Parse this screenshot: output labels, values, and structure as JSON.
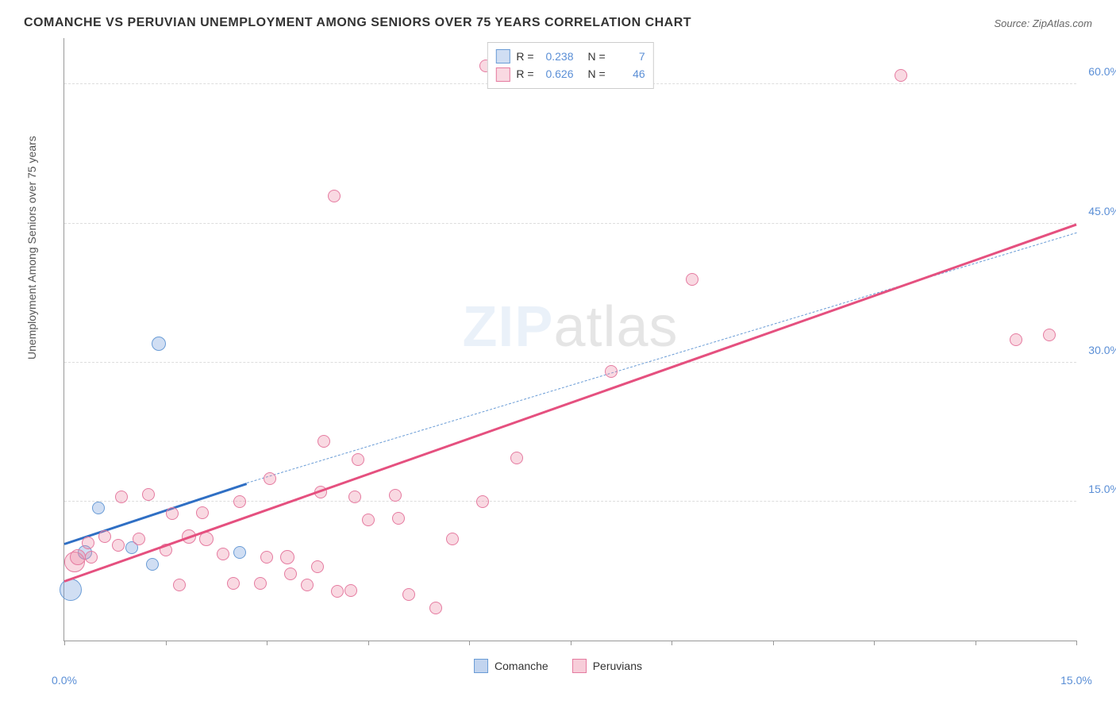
{
  "header": {
    "title": "COMANCHE VS PERUVIAN UNEMPLOYMENT AMONG SENIORS OVER 75 YEARS CORRELATION CHART",
    "source_prefix": "Source: ",
    "source": "ZipAtlas.com"
  },
  "watermark": {
    "part1": "ZIP",
    "part2": "atlas"
  },
  "chart": {
    "type": "scatter-with-trend",
    "y_axis_label": "Unemployment Among Seniors over 75 years",
    "xlim": [
      0,
      15
    ],
    "ylim": [
      0,
      65
    ],
    "x_ticks": [
      0,
      1.5,
      3,
      4.5,
      6,
      7.5,
      9,
      10.5,
      12,
      13.5,
      15
    ],
    "x_tick_labels": {
      "0": "0.0%",
      "15": "15.0%"
    },
    "y_ticks": [
      15,
      30,
      45,
      60
    ],
    "y_tick_labels": {
      "15": "15.0%",
      "30": "30.0%",
      "45": "45.0%",
      "60": "60.0%"
    },
    "grid_color": "#dddddd",
    "axis_color": "#999999",
    "tick_label_color": "#5b8fd6",
    "background_color": "#ffffff",
    "series": [
      {
        "name": "Comanche",
        "fill": "rgba(120,160,220,0.35)",
        "stroke": "#6a9cd6",
        "r_value": "0.238",
        "n_value": "7",
        "points": [
          {
            "x": 0.1,
            "y": 5.5,
            "r": 14
          },
          {
            "x": 0.3,
            "y": 9.5,
            "r": 9
          },
          {
            "x": 0.5,
            "y": 14.3,
            "r": 8
          },
          {
            "x": 1.0,
            "y": 10.0,
            "r": 8
          },
          {
            "x": 1.3,
            "y": 8.2,
            "r": 8
          },
          {
            "x": 2.6,
            "y": 9.5,
            "r": 8
          },
          {
            "x": 1.4,
            "y": 32.0,
            "r": 9
          }
        ],
        "trend": {
          "x1": 0,
          "y1": 10.5,
          "x2": 2.7,
          "y2": 17.0,
          "width": 3,
          "color": "#2f6fc4",
          "dash": false
        },
        "trend_ext": {
          "x1": 2.7,
          "y1": 17.0,
          "x2": 15,
          "y2": 44.0,
          "width": 1,
          "color": "#6a9cd6",
          "dash": true
        }
      },
      {
        "name": "Peruvians",
        "fill": "rgba(235,130,160,0.30)",
        "stroke": "#e57ba0",
        "r_value": "0.626",
        "n_value": "46",
        "points": [
          {
            "x": 0.15,
            "y": 8.5,
            "r": 13
          },
          {
            "x": 0.2,
            "y": 9.0,
            "r": 10
          },
          {
            "x": 0.35,
            "y": 10.5,
            "r": 8
          },
          {
            "x": 0.4,
            "y": 9.0,
            "r": 8
          },
          {
            "x": 0.6,
            "y": 11.2,
            "r": 8
          },
          {
            "x": 0.8,
            "y": 10.3,
            "r": 8
          },
          {
            "x": 0.85,
            "y": 15.5,
            "r": 8
          },
          {
            "x": 1.1,
            "y": 11.0,
            "r": 8
          },
          {
            "x": 1.25,
            "y": 15.8,
            "r": 8
          },
          {
            "x": 1.5,
            "y": 9.8,
            "r": 8
          },
          {
            "x": 1.6,
            "y": 13.7,
            "r": 8
          },
          {
            "x": 1.7,
            "y": 6.0,
            "r": 8
          },
          {
            "x": 1.85,
            "y": 11.2,
            "r": 9
          },
          {
            "x": 2.05,
            "y": 13.8,
            "r": 8
          },
          {
            "x": 2.1,
            "y": 11.0,
            "r": 9
          },
          {
            "x": 2.35,
            "y": 9.3,
            "r": 8
          },
          {
            "x": 2.5,
            "y": 6.2,
            "r": 8
          },
          {
            "x": 2.6,
            "y": 15.0,
            "r": 8
          },
          {
            "x": 2.9,
            "y": 6.2,
            "r": 8
          },
          {
            "x": 3.0,
            "y": 9.0,
            "r": 8
          },
          {
            "x": 3.05,
            "y": 17.5,
            "r": 8
          },
          {
            "x": 3.3,
            "y": 9.0,
            "r": 9
          },
          {
            "x": 3.35,
            "y": 7.2,
            "r": 8
          },
          {
            "x": 3.6,
            "y": 6.0,
            "r": 8
          },
          {
            "x": 3.75,
            "y": 8.0,
            "r": 8
          },
          {
            "x": 3.8,
            "y": 16.0,
            "r": 8
          },
          {
            "x": 3.85,
            "y": 21.5,
            "r": 8
          },
          {
            "x": 4.05,
            "y": 5.3,
            "r": 8
          },
          {
            "x": 4.25,
            "y": 5.4,
            "r": 8
          },
          {
            "x": 4.3,
            "y": 15.5,
            "r": 8
          },
          {
            "x": 4.35,
            "y": 19.5,
            "r": 8
          },
          {
            "x": 4.5,
            "y": 13.0,
            "r": 8
          },
          {
            "x": 4.9,
            "y": 15.7,
            "r": 8
          },
          {
            "x": 4.95,
            "y": 13.2,
            "r": 8
          },
          {
            "x": 5.1,
            "y": 5.0,
            "r": 8
          },
          {
            "x": 5.5,
            "y": 3.5,
            "r": 8
          },
          {
            "x": 5.75,
            "y": 11.0,
            "r": 8
          },
          {
            "x": 6.2,
            "y": 15.0,
            "r": 8
          },
          {
            "x": 4.0,
            "y": 48.0,
            "r": 8
          },
          {
            "x": 6.25,
            "y": 62.0,
            "r": 8
          },
          {
            "x": 8.1,
            "y": 29.0,
            "r": 8
          },
          {
            "x": 9.3,
            "y": 39.0,
            "r": 8
          },
          {
            "x": 12.4,
            "y": 61.0,
            "r": 8
          },
          {
            "x": 14.1,
            "y": 32.5,
            "r": 8
          },
          {
            "x": 14.6,
            "y": 33.0,
            "r": 8
          },
          {
            "x": 6.7,
            "y": 19.7,
            "r": 8
          }
        ],
        "trend": {
          "x1": 0,
          "y1": 6.5,
          "x2": 15,
          "y2": 45.0,
          "width": 3,
          "color": "#e5507f",
          "dash": false
        }
      }
    ]
  },
  "legend_top": {
    "r_label": "R =",
    "n_label": "N ="
  },
  "legend_bottom": [
    {
      "label": "Comanche",
      "fill": "rgba(120,160,220,0.45)",
      "stroke": "#6a9cd6"
    },
    {
      "label": "Peruvians",
      "fill": "rgba(235,130,160,0.40)",
      "stroke": "#e57ba0"
    }
  ]
}
